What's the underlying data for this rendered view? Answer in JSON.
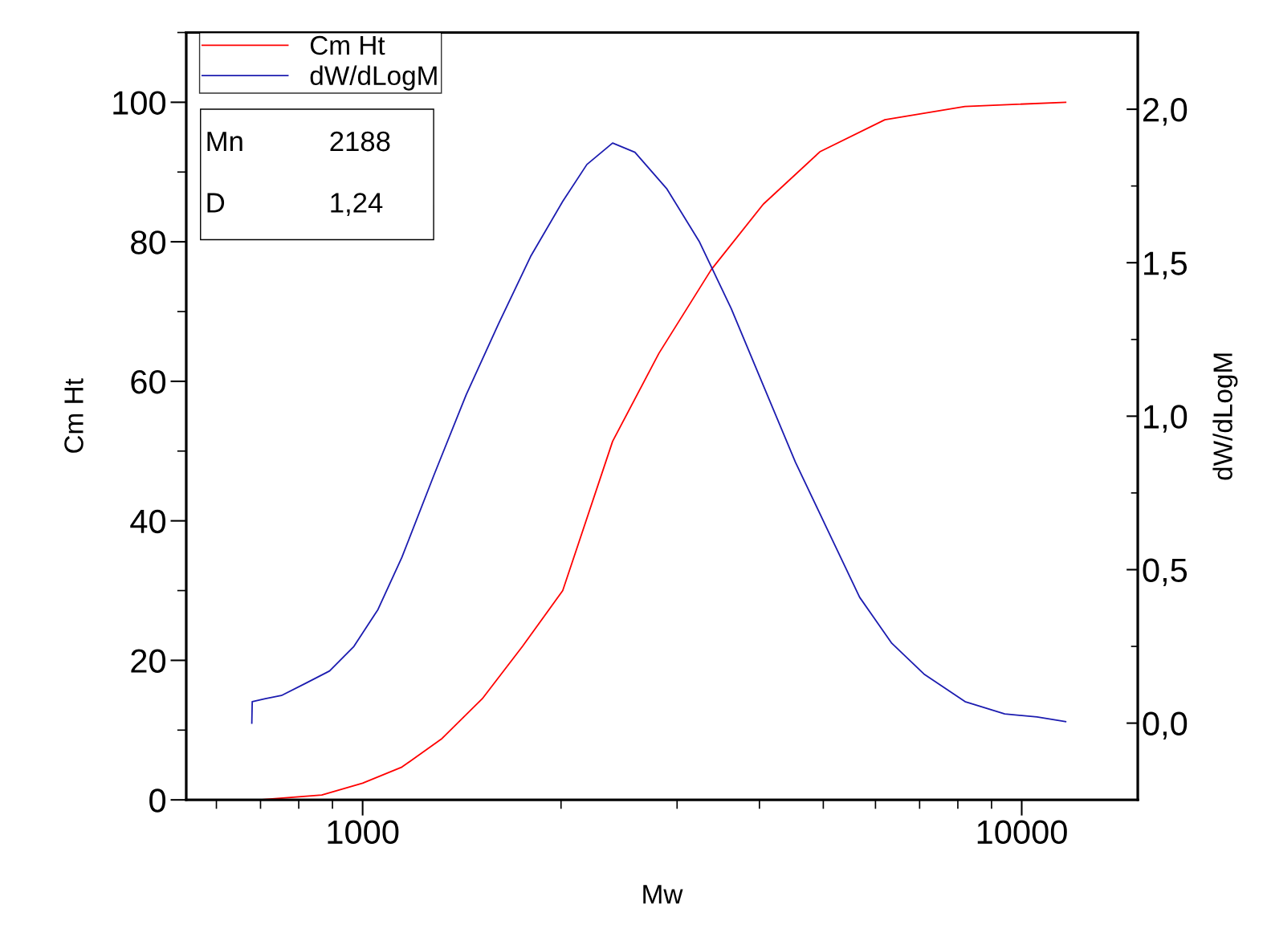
{
  "chart_data": {
    "type": "line",
    "xlabel": "Mw",
    "ylabel": "Cm Ht",
    "y2label": "dW/dLogM",
    "log": "x",
    "xlim": [
      540,
      15000
    ],
    "xticks": [
      1000,
      10000
    ],
    "ylim": [
      0,
      110
    ],
    "yticks": [
      0,
      20,
      40,
      60,
      80,
      100
    ],
    "y2lim": [
      -0.25,
      2.25
    ],
    "y2ticks": [
      {
        "value": 0,
        "label": "0,0"
      },
      {
        "value": 0.5,
        "label": "0,5"
      },
      {
        "value": 1,
        "label": "1,0"
      },
      {
        "value": 1.5,
        "label": "1,5"
      },
      {
        "value": 2,
        "label": "2,0"
      }
    ],
    "grid": false,
    "legend": "top left",
    "marker": "none",
    "line_style": "solid",
    "annotations": [
      "Mn",
      "2188",
      "D",
      "1,24"
    ],
    "series": [
      {
        "name": "Cm Ht",
        "color": "#ff0000",
        "x": [
          697,
          867,
          1000,
          1147,
          1320,
          1519,
          1748,
          2012,
          2130,
          2395,
          2815,
          3380,
          4055,
          4940,
          6200,
          8200,
          11660
        ],
        "values": [
          0,
          0.7,
          2.4,
          4.7,
          8.8,
          14.5,
          22,
          30,
          37,
          51.4,
          64,
          76,
          85.4,
          92.9,
          97.5,
          99.4,
          100
        ]
      },
      {
        "name": "dW/dLogM",
        "color": "#1c1cb0",
        "axis": "y2",
        "x": [
          679,
          680,
          712,
          753,
          820,
          891,
          970,
          1055,
          1147,
          1284,
          1436,
          1607,
          1798,
          2012,
          2189,
          2395,
          2589,
          2896,
          3240,
          3626,
          4055,
          4536,
          5075,
          5677,
          6352,
          7107,
          8204,
          9424,
          10548,
          11660
        ],
        "values": [
          0.0,
          0.07,
          0.08,
          0.09,
          0.13,
          0.17,
          0.25,
          0.37,
          0.54,
          0.81,
          1.07,
          1.3,
          1.52,
          1.7,
          1.82,
          1.89,
          1.86,
          1.74,
          1.57,
          1.35,
          1.1,
          0.85,
          0.63,
          0.41,
          0.26,
          0.16,
          0.07,
          0.03,
          0.02,
          0.005
        ]
      }
    ]
  }
}
